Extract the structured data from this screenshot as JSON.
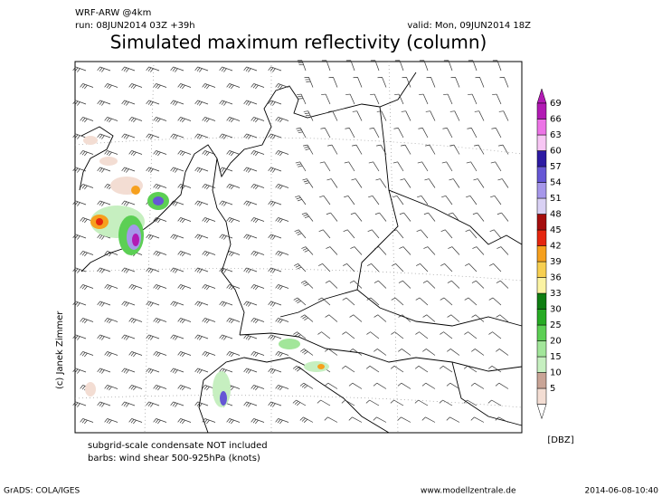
{
  "header": {
    "model": "WRF-ARW @4km",
    "run": "run: 08JUN2014 03Z +39h",
    "valid": "valid: Mon, 09JUN2014 18Z",
    "title": "Simulated maximum reflectivity (column)"
  },
  "colorbar": {
    "unit": "[DBZ]",
    "levels": [
      {
        "value": 5,
        "color": "#f3ddd3"
      },
      {
        "value": 10,
        "color": "#c9a496"
      },
      {
        "value": 15,
        "color": "#c6efc0"
      },
      {
        "value": 20,
        "color": "#a2e69a"
      },
      {
        "value": 25,
        "color": "#5ccf54"
      },
      {
        "value": 30,
        "color": "#27ab24"
      },
      {
        "value": 33,
        "color": "#0f7e12"
      },
      {
        "value": 36,
        "color": "#fbf3a3"
      },
      {
        "value": 39,
        "color": "#f7cf50"
      },
      {
        "value": 42,
        "color": "#f6a01e"
      },
      {
        "value": 45,
        "color": "#e5260f"
      },
      {
        "value": 48,
        "color": "#a50d0d"
      },
      {
        "value": 51,
        "color": "#d9d1f4"
      },
      {
        "value": 54,
        "color": "#a697ea"
      },
      {
        "value": 57,
        "color": "#6657d5"
      },
      {
        "value": 60,
        "color": "#2c1aa3"
      },
      {
        "value": 63,
        "color": "#f7c6f4"
      },
      {
        "value": 66,
        "color": "#ec74e6"
      },
      {
        "value": 69,
        "color": "#b21ab4"
      }
    ]
  },
  "notes": [
    "subgrid-scale condensate NOT included",
    "barbs: wind shear 500-925hPa (knots)"
  ],
  "credit": "(c) Janek Zimmer",
  "footer": {
    "left": "GrADS: COLA/IGES",
    "center": "www.modellzentrale.de",
    "right": "2014-06-08-10:40"
  }
}
